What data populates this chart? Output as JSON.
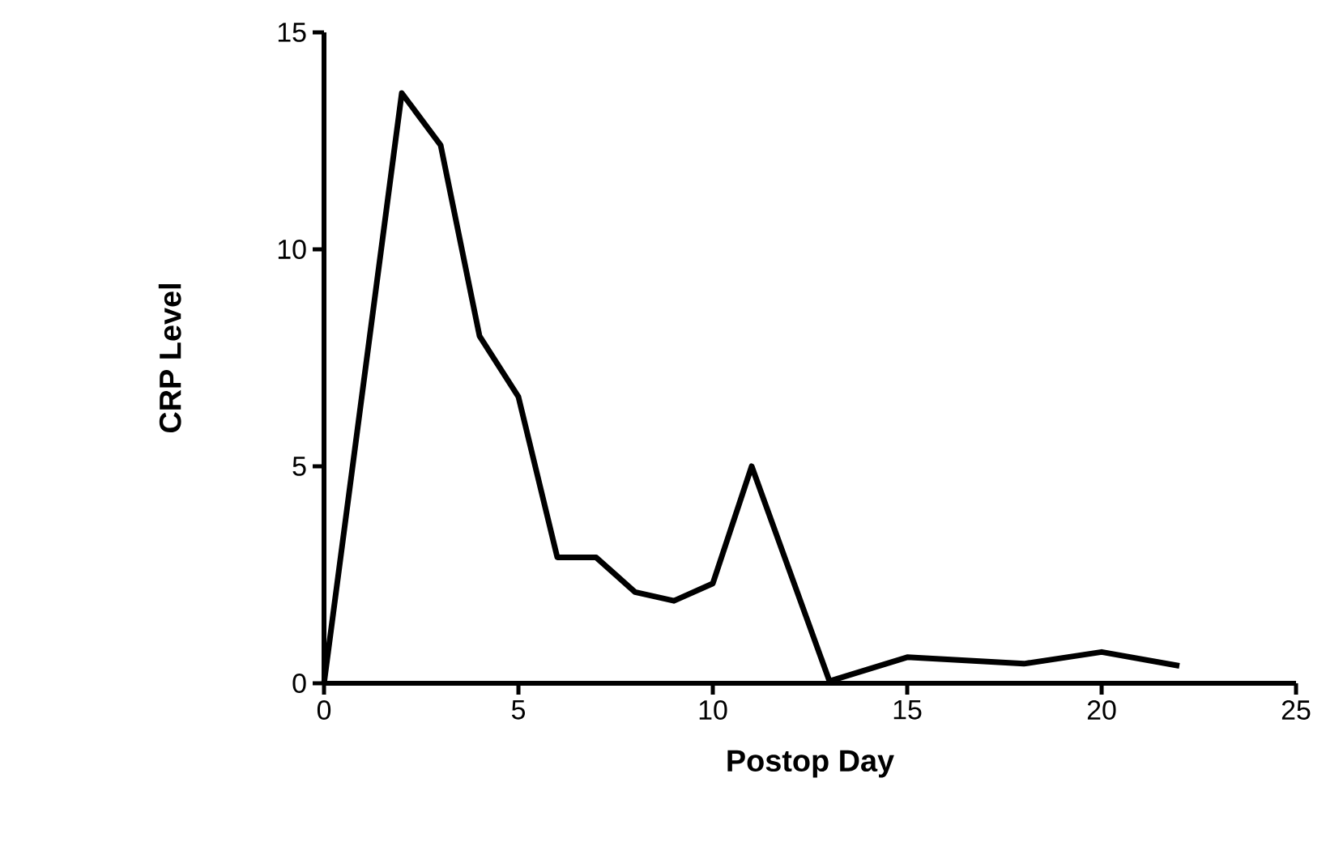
{
  "chart_data": {
    "type": "line",
    "xlabel": "Postop Day",
    "ylabel": "CRP Level",
    "x": [
      0,
      2,
      3,
      4,
      5,
      6,
      7,
      8,
      9,
      10,
      11,
      13,
      15,
      18,
      20,
      22
    ],
    "values": [
      0,
      13.6,
      12.4,
      8,
      6.6,
      2.9,
      2.9,
      2.1,
      1.9,
      2.3,
      5,
      0.05,
      0.6,
      0.45,
      0.72,
      0.4
    ],
    "color": "#000000",
    "xlim": [
      0,
      25
    ],
    "ylim": [
      0,
      15
    ],
    "xticks": [
      0,
      5,
      10,
      15,
      20,
      25
    ],
    "yticks": [
      0,
      5,
      10,
      15
    ],
    "grid": false,
    "marker": "none",
    "line_style": "solid"
  }
}
